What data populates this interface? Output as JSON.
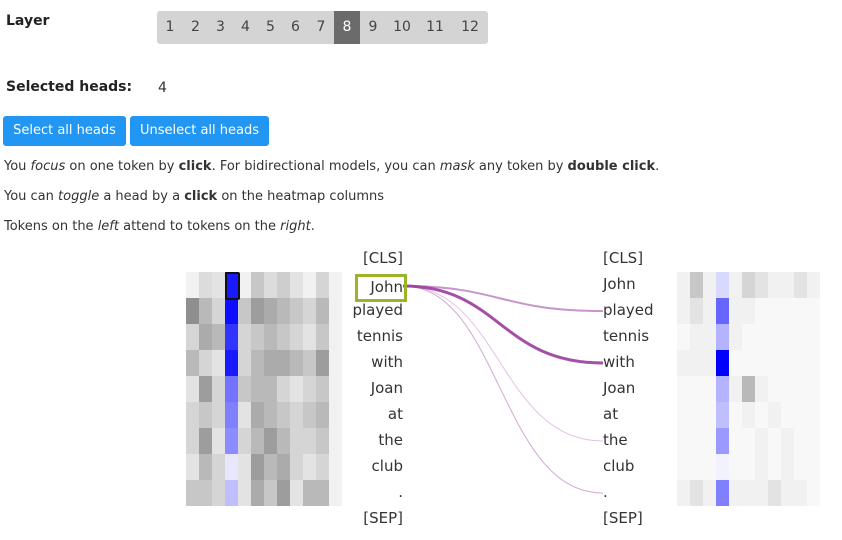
{
  "layer": {
    "label": "Layer",
    "options": [
      "1",
      "2",
      "3",
      "4",
      "5",
      "6",
      "7",
      "8",
      "9",
      "10",
      "11",
      "12"
    ],
    "selected": "8"
  },
  "heads": {
    "label": "Selected heads:",
    "value": "4"
  },
  "buttons": {
    "select_all": "Select all heads",
    "unselect_all": "Unselect all heads"
  },
  "instructions": {
    "line1": [
      "You ",
      "focus",
      " on one token by ",
      "click",
      ". For bidirectional models, you can ",
      "mask",
      " any token by ",
      "double click",
      "."
    ],
    "line2": [
      "You can ",
      "toggle",
      " a head by a ",
      "click",
      " on the heatmap columns"
    ],
    "line3": [
      "Tokens on the ",
      "left",
      " attend to tokens on the ",
      "right",
      "."
    ]
  },
  "tokens": [
    "[CLS]",
    "John",
    "played",
    "tennis",
    "with",
    "Joan",
    "at",
    "the",
    "club",
    ".",
    "[SEP]"
  ],
  "focused_token": "John",
  "colors": {
    "accent": "#2196f3",
    "head_color": "#0000ff",
    "focus_border": "#9ab52a",
    "line": "#9b3d9e"
  }
}
